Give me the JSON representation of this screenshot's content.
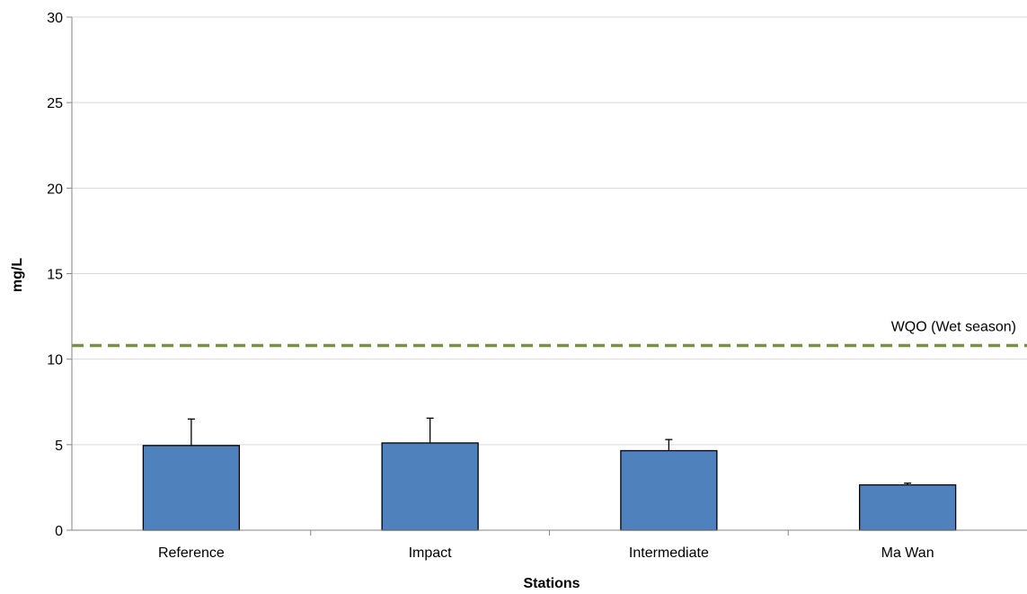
{
  "chart_data": {
    "type": "bar",
    "title": "",
    "xlabel": "Stations",
    "ylabel": "mg/L",
    "categories": [
      "Reference",
      "Impact",
      "Intermediate",
      "Ma Wan"
    ],
    "values": [
      4.95,
      5.1,
      4.65,
      2.65
    ],
    "error_upper": [
      6.5,
      6.55,
      5.3,
      2.75
    ],
    "ylim": [
      0,
      30
    ],
    "yticks": [
      0,
      5,
      10,
      15,
      20,
      25,
      30
    ],
    "grid": true,
    "reference_line": {
      "label": "WQO (Wet season)",
      "value": 10.8,
      "color": "#77933c",
      "style": "dashed"
    },
    "colors": {
      "bar_fill": "#4f81bd",
      "bar_stroke": "#000000",
      "grid": "#d9d9d9",
      "axis": "#868686"
    }
  }
}
